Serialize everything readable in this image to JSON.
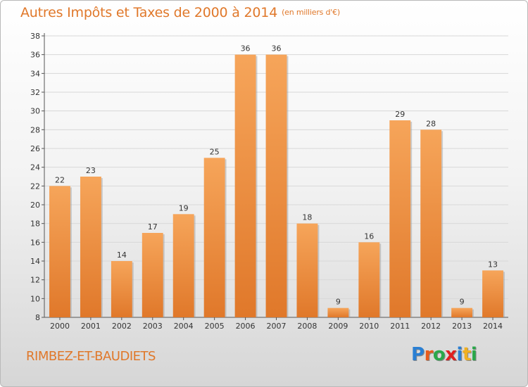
{
  "title": "Autres Impôts et Taxes de 2000 à 2014",
  "unit": "(en milliers d'€)",
  "commune": "RIMBEZ-ET-BAUDIETS",
  "logo": {
    "letters": [
      "P",
      "r",
      "o",
      "x",
      "i",
      "t",
      "i"
    ],
    "colors": [
      "#2a7fd3",
      "#e85b1c",
      "#2aa84a",
      "#e02020",
      "#2a7fd3",
      "#f0b020",
      "#2aa84a"
    ]
  },
  "colors": {
    "bar_light": "#f6a55a",
    "bar_dark": "#e0782a",
    "accent": "#e0782a"
  },
  "chart_data": {
    "type": "bar",
    "title": "Autres Impôts et Taxes de 2000 à 2014",
    "subtitle": "(en milliers d'€)",
    "categories": [
      "2000",
      "2001",
      "2002",
      "2003",
      "2004",
      "2005",
      "2006",
      "2007",
      "2008",
      "2009",
      "2010",
      "2011",
      "2012",
      "2013",
      "2014"
    ],
    "values": [
      22,
      23,
      14,
      17,
      19,
      25,
      36,
      36,
      18,
      9,
      16,
      29,
      28,
      9,
      13
    ],
    "ylim": [
      8,
      38
    ],
    "yticks": [
      8,
      10,
      12,
      14,
      16,
      18,
      20,
      22,
      24,
      26,
      28,
      30,
      32,
      34,
      36,
      38
    ],
    "grid": true,
    "data_labels": true
  }
}
